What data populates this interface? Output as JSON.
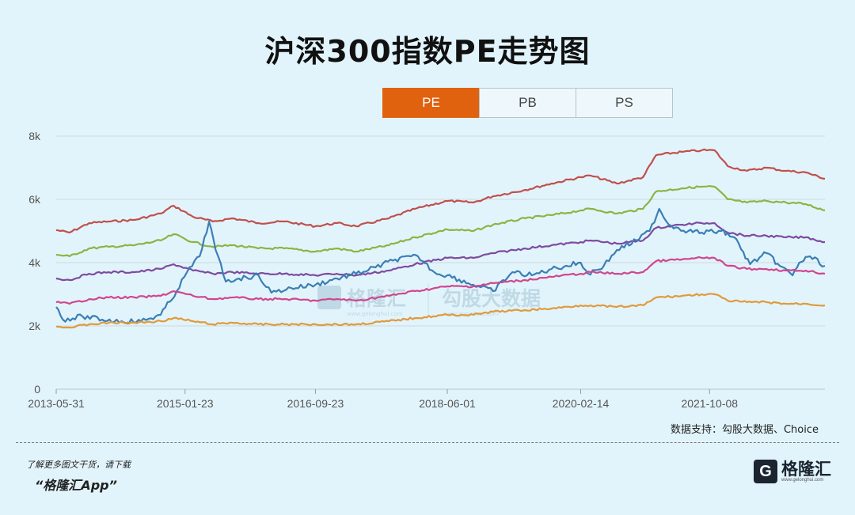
{
  "title": "沪深300指数PE走势图",
  "tabs": [
    {
      "label": "PE",
      "active": true
    },
    {
      "label": "PB",
      "active": false
    },
    {
      "label": "PS",
      "active": false
    }
  ],
  "source_text": "数据支持：勾股大数据、Choice",
  "footer": {
    "line1": "了解更多图文干货，请下载",
    "line2": "“格隆汇App”"
  },
  "logo": {
    "mark": "G",
    "name": "格隆汇",
    "domain": "www.gelonghui.com"
  },
  "watermark": {
    "left_name": "格隆汇",
    "left_domain": "www.gelonghui.com",
    "right_name": "勾股大数据",
    "right_domain": "www.gogudata.com"
  },
  "colors": {
    "background": "#e2f4fb",
    "tab_active": "#e0620e",
    "gridline": "#cfd9de",
    "red": "#c0504d",
    "green": "#8db443",
    "purple": "#7d4ba0",
    "blue": "#3b7fb5",
    "pink": "#d1468e",
    "orange": "#e09a3c"
  },
  "chart_data": {
    "type": "line",
    "y_ticks": [
      "0",
      "2k",
      "4k",
      "6k",
      "8k"
    ],
    "ylim": [
      0,
      8000
    ],
    "x_ticks": [
      "2013-05-31",
      "2015-01-23",
      "2016-09-23",
      "2018-06-01",
      "2020-02-14",
      "2021-10-08"
    ],
    "x_range": [
      "2013-05-31",
      "2023-03-31"
    ],
    "grid": "horizontal",
    "series": [
      {
        "color_key": "red",
        "points": [
          [
            "2013-05-31",
            5030
          ],
          [
            "2013-08-01",
            4950
          ],
          [
            "2013-11-01",
            5250
          ],
          [
            "2014-02-01",
            5300
          ],
          [
            "2014-06-01",
            5350
          ],
          [
            "2014-10-01",
            5550
          ],
          [
            "2014-12-01",
            5800
          ],
          [
            "2015-03-01",
            5450
          ],
          [
            "2015-06-01",
            5300
          ],
          [
            "2015-09-01",
            5400
          ],
          [
            "2016-01-01",
            5250
          ],
          [
            "2016-05-01",
            5300
          ],
          [
            "2016-09-23",
            5150
          ],
          [
            "2017-01-01",
            5250
          ],
          [
            "2017-04-01",
            5150
          ],
          [
            "2017-09-01",
            5400
          ],
          [
            "2018-01-01",
            5700
          ],
          [
            "2018-06-01",
            5950
          ],
          [
            "2018-10-01",
            5900
          ],
          [
            "2019-01-01",
            6100
          ],
          [
            "2019-06-01",
            6300
          ],
          [
            "2019-10-01",
            6500
          ],
          [
            "2020-02-14",
            6700
          ],
          [
            "2020-04-01",
            6750
          ],
          [
            "2020-08-01",
            6500
          ],
          [
            "2020-12-01",
            6700
          ],
          [
            "2021-02-01",
            7400
          ],
          [
            "2021-06-01",
            7500
          ],
          [
            "2021-09-01",
            7550
          ],
          [
            "2021-11-01",
            7550
          ],
          [
            "2022-01-01",
            7050
          ],
          [
            "2022-04-01",
            6900
          ],
          [
            "2022-07-01",
            7000
          ],
          [
            "2022-10-01",
            6900
          ],
          [
            "2023-01-01",
            6850
          ],
          [
            "2023-03-31",
            6650
          ]
        ]
      },
      {
        "color_key": "green",
        "points": [
          [
            "2013-05-31",
            4250
          ],
          [
            "2013-08-01",
            4200
          ],
          [
            "2013-11-01",
            4450
          ],
          [
            "2014-02-01",
            4500
          ],
          [
            "2014-06-01",
            4550
          ],
          [
            "2014-10-01",
            4700
          ],
          [
            "2014-12-01",
            4900
          ],
          [
            "2015-03-01",
            4650
          ],
          [
            "2015-06-01",
            4500
          ],
          [
            "2015-09-01",
            4550
          ],
          [
            "2016-01-01",
            4450
          ],
          [
            "2016-05-01",
            4450
          ],
          [
            "2016-09-23",
            4350
          ],
          [
            "2017-01-01",
            4450
          ],
          [
            "2017-04-01",
            4350
          ],
          [
            "2017-09-01",
            4550
          ],
          [
            "2018-01-01",
            4800
          ],
          [
            "2018-06-01",
            5050
          ],
          [
            "2018-10-01",
            5000
          ],
          [
            "2019-01-01",
            5200
          ],
          [
            "2019-06-01",
            5400
          ],
          [
            "2019-10-01",
            5500
          ],
          [
            "2020-02-14",
            5650
          ],
          [
            "2020-04-01",
            5700
          ],
          [
            "2020-08-01",
            5550
          ],
          [
            "2020-12-01",
            5700
          ],
          [
            "2021-02-01",
            6250
          ],
          [
            "2021-06-01",
            6350
          ],
          [
            "2021-09-01",
            6400
          ],
          [
            "2021-11-01",
            6400
          ],
          [
            "2022-01-01",
            6000
          ],
          [
            "2022-04-01",
            5900
          ],
          [
            "2022-07-01",
            5950
          ],
          [
            "2022-10-01",
            5900
          ],
          [
            "2023-01-01",
            5850
          ],
          [
            "2023-03-31",
            5650
          ]
        ]
      },
      {
        "color_key": "purple",
        "points": [
          [
            "2013-05-31",
            3500
          ],
          [
            "2013-08-01",
            3450
          ],
          [
            "2013-11-01",
            3650
          ],
          [
            "2014-02-01",
            3700
          ],
          [
            "2014-06-01",
            3700
          ],
          [
            "2014-10-01",
            3800
          ],
          [
            "2014-12-01",
            3950
          ],
          [
            "2015-03-01",
            3750
          ],
          [
            "2015-06-01",
            3650
          ],
          [
            "2015-09-01",
            3700
          ],
          [
            "2016-01-01",
            3650
          ],
          [
            "2016-05-01",
            3650
          ],
          [
            "2016-09-23",
            3600
          ],
          [
            "2017-01-01",
            3650
          ],
          [
            "2017-04-01",
            3600
          ],
          [
            "2017-09-01",
            3750
          ],
          [
            "2018-01-01",
            3950
          ],
          [
            "2018-06-01",
            4150
          ],
          [
            "2018-10-01",
            4150
          ],
          [
            "2019-01-01",
            4300
          ],
          [
            "2019-06-01",
            4450
          ],
          [
            "2019-10-01",
            4550
          ],
          [
            "2020-02-14",
            4650
          ],
          [
            "2020-04-01",
            4700
          ],
          [
            "2020-08-01",
            4600
          ],
          [
            "2020-12-01",
            4700
          ],
          [
            "2021-02-01",
            5100
          ],
          [
            "2021-06-01",
            5200
          ],
          [
            "2021-09-01",
            5250
          ],
          [
            "2021-11-01",
            5250
          ],
          [
            "2022-01-01",
            4950
          ],
          [
            "2022-04-01",
            4850
          ],
          [
            "2022-07-01",
            4850
          ],
          [
            "2022-10-01",
            4800
          ],
          [
            "2023-01-01",
            4800
          ],
          [
            "2023-03-31",
            4650
          ]
        ]
      },
      {
        "color_key": "blue",
        "points": [
          [
            "2013-05-31",
            2600
          ],
          [
            "2013-07-01",
            2200
          ],
          [
            "2013-10-01",
            2300
          ],
          [
            "2014-01-01",
            2200
          ],
          [
            "2014-04-01",
            2150
          ],
          [
            "2014-07-01",
            2150
          ],
          [
            "2014-10-01",
            2350
          ],
          [
            "2014-12-15",
            3100
          ],
          [
            "2015-02-01",
            3700
          ],
          [
            "2015-04-01",
            4200
          ],
          [
            "2015-05-15",
            5300
          ],
          [
            "2015-06-15",
            4400
          ],
          [
            "2015-08-01",
            3400
          ],
          [
            "2015-10-01",
            3500
          ],
          [
            "2016-01-01",
            3600
          ],
          [
            "2016-03-01",
            3050
          ],
          [
            "2016-06-01",
            3200
          ],
          [
            "2016-09-23",
            3300
          ],
          [
            "2017-01-01",
            3500
          ],
          [
            "2017-04-01",
            3650
          ],
          [
            "2017-07-01",
            3850
          ],
          [
            "2017-10-01",
            4100
          ],
          [
            "2018-01-15",
            4200
          ],
          [
            "2018-04-01",
            3700
          ],
          [
            "2018-06-01",
            3600
          ],
          [
            "2018-10-01",
            3300
          ],
          [
            "2019-01-01",
            3100
          ],
          [
            "2019-04-01",
            3700
          ],
          [
            "2019-07-01",
            3600
          ],
          [
            "2019-10-01",
            3800
          ],
          [
            "2020-02-14",
            4000
          ],
          [
            "2020-03-20",
            3650
          ],
          [
            "2020-06-01",
            3900
          ],
          [
            "2020-08-01",
            4400
          ],
          [
            "2020-11-01",
            4700
          ],
          [
            "2021-01-01",
            5000
          ],
          [
            "2021-02-15",
            5700
          ],
          [
            "2021-04-01",
            5200
          ],
          [
            "2021-07-01",
            5000
          ],
          [
            "2021-09-01",
            4950
          ],
          [
            "2021-12-01",
            5000
          ],
          [
            "2022-02-01",
            4800
          ],
          [
            "2022-04-15",
            3950
          ],
          [
            "2022-07-01",
            4300
          ],
          [
            "2022-09-01",
            3900
          ],
          [
            "2022-10-31",
            3600
          ],
          [
            "2022-12-01",
            4000
          ],
          [
            "2023-01-20",
            4200
          ],
          [
            "2023-03-31",
            3900
          ]
        ]
      },
      {
        "color_key": "pink",
        "points": [
          [
            "2013-05-31",
            2750
          ],
          [
            "2013-08-01",
            2700
          ],
          [
            "2013-11-01",
            2850
          ],
          [
            "2014-02-01",
            2900
          ],
          [
            "2014-06-01",
            2900
          ],
          [
            "2014-10-01",
            2950
          ],
          [
            "2014-12-01",
            3100
          ],
          [
            "2015-03-01",
            2950
          ],
          [
            "2015-06-01",
            2850
          ],
          [
            "2015-09-01",
            2900
          ],
          [
            "2016-01-01",
            2850
          ],
          [
            "2016-05-01",
            2850
          ],
          [
            "2016-09-23",
            2800
          ],
          [
            "2017-01-01",
            2850
          ],
          [
            "2017-04-01",
            2800
          ],
          [
            "2017-09-01",
            2950
          ],
          [
            "2018-01-01",
            3100
          ],
          [
            "2018-06-01",
            3250
          ],
          [
            "2018-10-01",
            3250
          ],
          [
            "2019-01-01",
            3350
          ],
          [
            "2019-06-01",
            3450
          ],
          [
            "2019-10-01",
            3550
          ],
          [
            "2020-02-14",
            3650
          ],
          [
            "2020-04-01",
            3700
          ],
          [
            "2020-08-01",
            3650
          ],
          [
            "2020-12-01",
            3700
          ],
          [
            "2021-02-01",
            4050
          ],
          [
            "2021-06-01",
            4100
          ],
          [
            "2021-09-01",
            4150
          ],
          [
            "2021-11-01",
            4150
          ],
          [
            "2022-01-01",
            3900
          ],
          [
            "2022-04-01",
            3800
          ],
          [
            "2022-07-01",
            3800
          ],
          [
            "2022-10-01",
            3750
          ],
          [
            "2023-01-01",
            3750
          ],
          [
            "2023-03-31",
            3650
          ]
        ]
      },
      {
        "color_key": "orange",
        "points": [
          [
            "2013-05-31",
            1980
          ],
          [
            "2013-08-01",
            1950
          ],
          [
            "2013-11-01",
            2050
          ],
          [
            "2014-02-01",
            2100
          ],
          [
            "2014-06-01",
            2100
          ],
          [
            "2014-10-01",
            2150
          ],
          [
            "2014-12-01",
            2250
          ],
          [
            "2015-03-01",
            2150
          ],
          [
            "2015-06-01",
            2050
          ],
          [
            "2015-09-01",
            2100
          ],
          [
            "2016-01-01",
            2050
          ],
          [
            "2016-05-01",
            2050
          ],
          [
            "2016-09-23",
            2050
          ],
          [
            "2017-01-01",
            2050
          ],
          [
            "2017-04-01",
            2050
          ],
          [
            "2017-09-01",
            2150
          ],
          [
            "2018-01-01",
            2250
          ],
          [
            "2018-06-01",
            2350
          ],
          [
            "2018-10-01",
            2350
          ],
          [
            "2019-01-01",
            2450
          ],
          [
            "2019-06-01",
            2500
          ],
          [
            "2019-10-01",
            2550
          ],
          [
            "2020-02-14",
            2650
          ],
          [
            "2020-04-01",
            2650
          ],
          [
            "2020-08-01",
            2600
          ],
          [
            "2020-12-01",
            2650
          ],
          [
            "2021-02-01",
            2900
          ],
          [
            "2021-06-01",
            2950
          ],
          [
            "2021-09-01",
            3000
          ],
          [
            "2021-11-01",
            3000
          ],
          [
            "2022-01-01",
            2800
          ],
          [
            "2022-04-01",
            2750
          ],
          [
            "2022-07-01",
            2750
          ],
          [
            "2022-10-01",
            2700
          ],
          [
            "2023-01-01",
            2700
          ],
          [
            "2023-03-31",
            2650
          ]
        ]
      }
    ]
  }
}
